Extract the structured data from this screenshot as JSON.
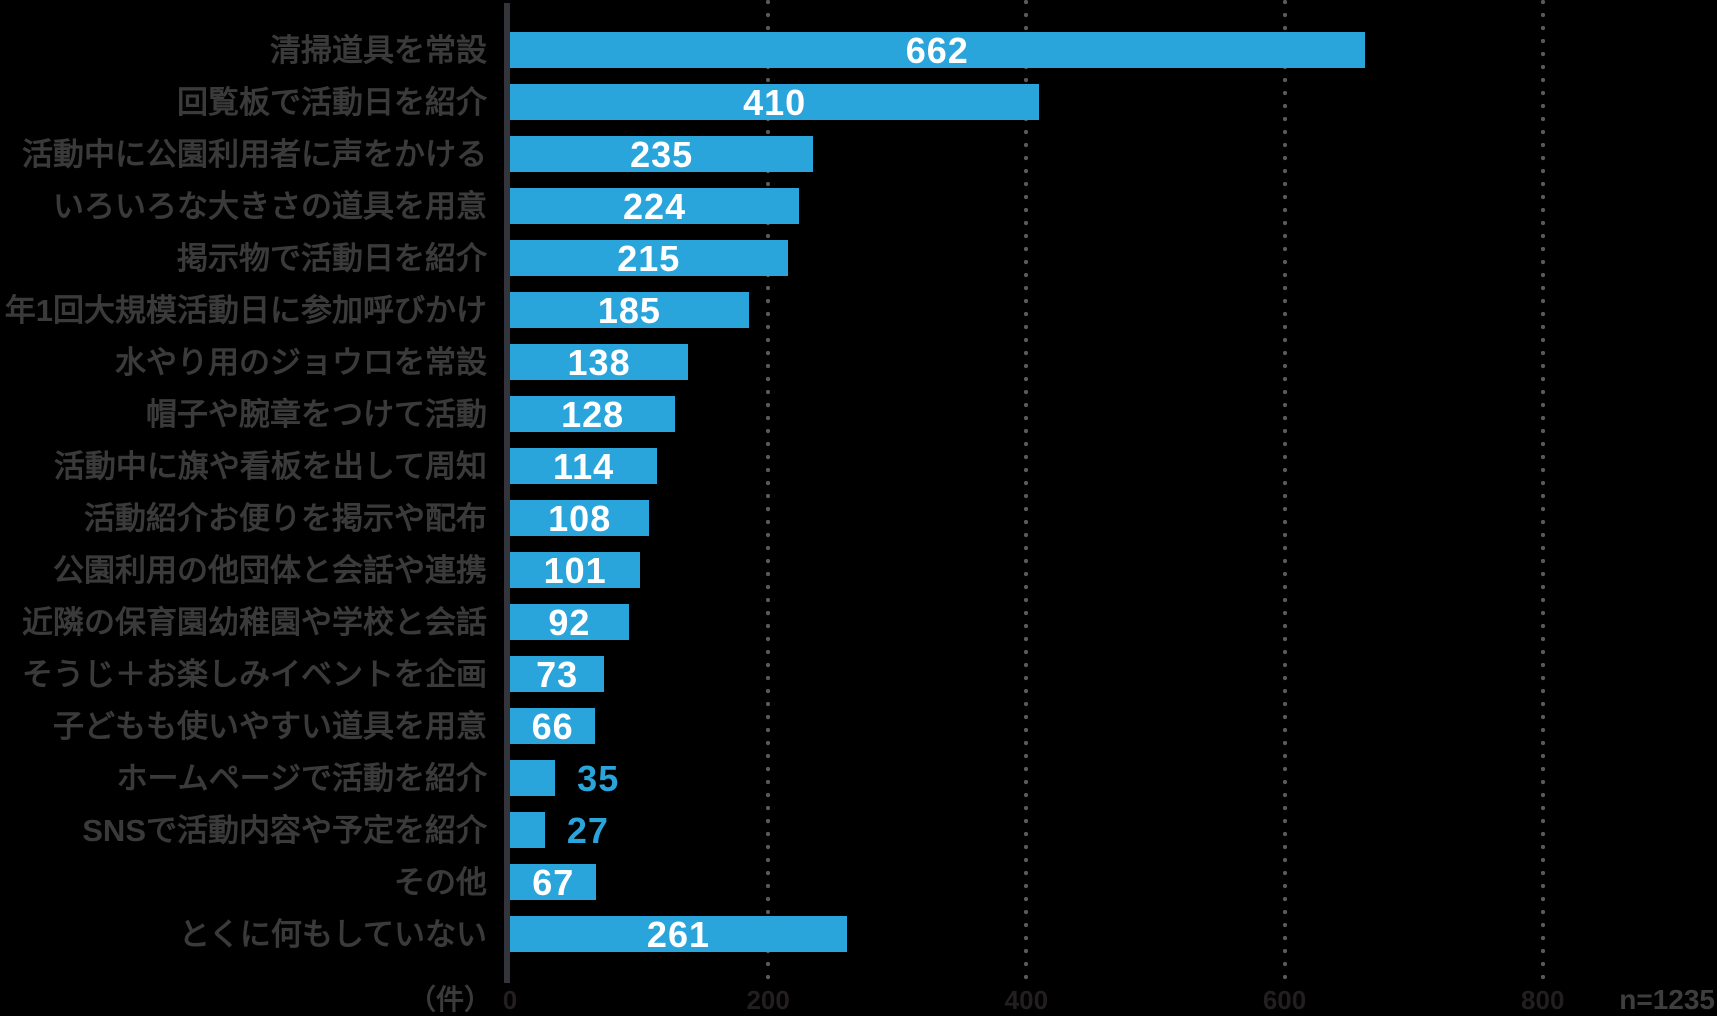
{
  "chart_data": {
    "type": "bar",
    "orientation": "horizontal",
    "title": "",
    "categories": [
      "清掃道具を常設",
      "回覧板で活動日を紹介",
      "活動中に公園利用者に声をかける",
      "いろいろな大きさの道具を用意",
      "掲示物で活動日を紹介",
      "年1回大規模活動日に参加呼びかけ",
      "水やり用のジョウロを常設",
      "帽子や腕章をつけて活動",
      "活動中に旗や看板を出して周知",
      "活動紹介お便りを掲示や配布",
      "公園利用の他団体と会話や連携",
      "近隣の保育園幼稚園や学校と会話",
      "そうじ＋お楽しみイベントを企画",
      "子どもも使いやすい道具を用意",
      "ホームページで活動を紹介",
      "SNSで活動内容や予定を紹介",
      "その他",
      "とくに何もしていない"
    ],
    "values": [
      662,
      410,
      235,
      224,
      215,
      185,
      138,
      128,
      114,
      108,
      101,
      92,
      73,
      66,
      35,
      27,
      67,
      261
    ],
    "xlabel": "（件）",
    "ylabel": "",
    "xlim": [
      0,
      935
    ],
    "x_ticks": [
      0,
      200,
      400,
      600,
      800
    ],
    "grid": "dotted vertical gridlines",
    "legend": "none",
    "sample_size_label": "n=1235",
    "colors": {
      "background": "#000000",
      "bar": "#29a5dc",
      "value_label_inside": "#ffffff",
      "value_label_outside": "#29a5dc",
      "category_label": "#3a3a3a",
      "axis_line": "#33353b",
      "grid_dots": "#58595b",
      "tick_label": "#231f20",
      "unit_label": "#3a3a3a",
      "sample_size_label": "#3e3e3e"
    }
  }
}
